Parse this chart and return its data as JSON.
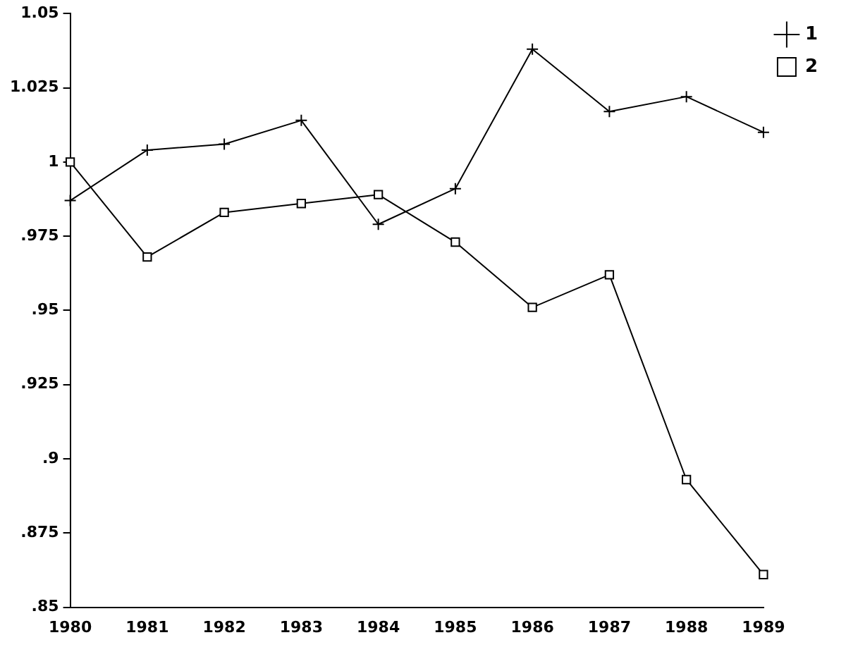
{
  "chart_data": {
    "type": "line",
    "categories": [
      "1980",
      "1981",
      "1982",
      "1983",
      "1984",
      "1985",
      "1986",
      "1987",
      "1988",
      "1989"
    ],
    "series": [
      {
        "name": "1",
        "color": "#000000",
        "marker": "cross",
        "values": [
          0.987,
          1.004,
          1.006,
          1.014,
          0.979,
          0.991,
          1.038,
          1.017,
          1.022,
          1.01
        ]
      },
      {
        "name": "2",
        "color": "#000000",
        "marker": "square",
        "values": [
          1.0,
          0.968,
          0.983,
          0.986,
          0.989,
          0.973,
          0.951,
          0.962,
          0.893,
          0.861
        ]
      }
    ],
    "ylim": [
      0.85,
      1.05
    ],
    "yticks": [
      {
        "value": 0.85,
        "label": ".85"
      },
      {
        "value": 0.875,
        "label": ".875"
      },
      {
        "value": 0.9,
        "label": ".9"
      },
      {
        "value": 0.925,
        "label": ".925"
      },
      {
        "value": 0.95,
        "label": ".95"
      },
      {
        "value": 0.975,
        "label": ".975"
      },
      1,
      1.025,
      1.05
    ],
    "grid": false,
    "legend": "top right",
    "line_style": "solid"
  }
}
